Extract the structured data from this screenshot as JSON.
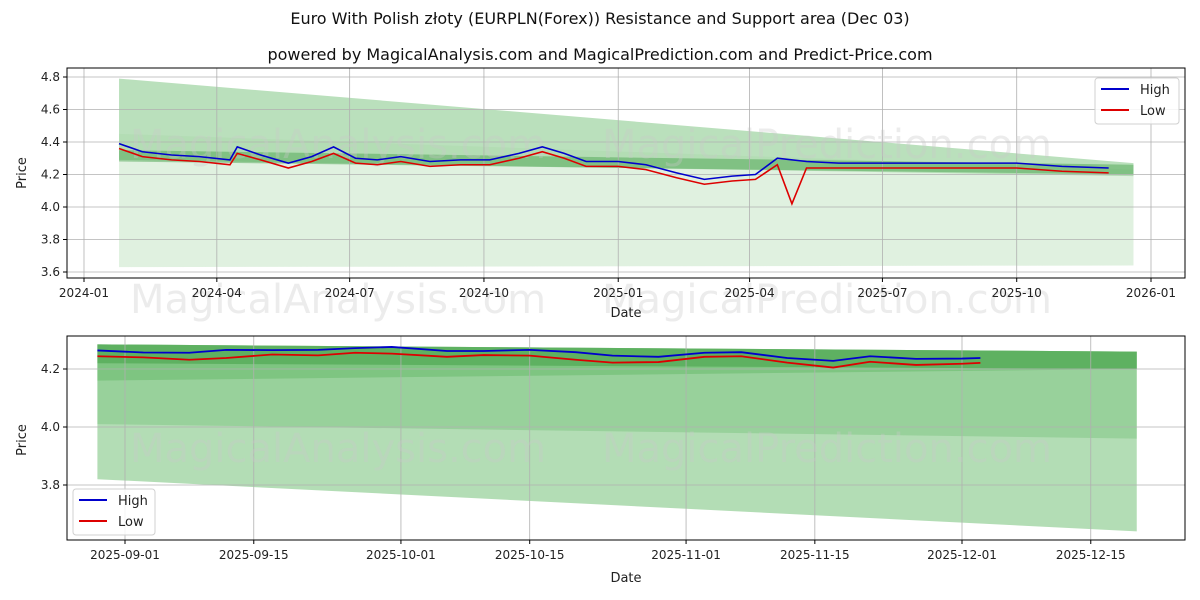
{
  "header": {
    "title": "Euro With Polish złoty (EURPLN(Forex)) Resistance and Support area (Dec 03)",
    "subtitle": "powered by MagicalAnalysis.com and MagicalPrediction.com and Predict-Price.com"
  },
  "watermarks": [
    "MagicalAnalysis.com",
    "MagicalPrediction.com"
  ],
  "colors": {
    "high": "#0000cc",
    "low": "#dd0000",
    "band_dark": "#4caf50",
    "band_mid": "#81c784",
    "band_light": "#c8e6c9",
    "grid": "#b0b0b0"
  },
  "chart_data": [
    {
      "type": "line",
      "title": "Full history",
      "xlabel": "Date",
      "ylabel": "Price",
      "ylim": [
        3.57,
        4.83
      ],
      "yticks": [
        "3.6",
        "3.8",
        "4.0",
        "4.2",
        "4.4",
        "4.6",
        "4.8"
      ],
      "xticks": [
        "2024-01",
        "2024-04",
        "2024-07",
        "2024-10",
        "2025-01",
        "2025-04",
        "2025-07",
        "2025-10",
        "2026-01"
      ],
      "grid": true,
      "legend_position": "upper right",
      "legend": [
        "High",
        "Low"
      ],
      "series": [
        {
          "name": "High",
          "x": [
            "2024-01-25",
            "2024-02-10",
            "2024-03-01",
            "2024-03-20",
            "2024-04-10",
            "2024-04-15",
            "2024-05-01",
            "2024-05-20",
            "2024-06-05",
            "2024-06-20",
            "2024-07-05",
            "2024-07-20",
            "2024-08-05",
            "2024-08-25",
            "2024-09-15",
            "2024-10-05",
            "2024-10-25",
            "2024-11-10",
            "2024-11-25",
            "2024-12-10",
            "2025-01-01",
            "2025-01-20",
            "2025-02-10",
            "2025-03-01",
            "2025-03-20",
            "2025-04-05",
            "2025-04-20",
            "2025-05-10",
            "2025-06-01",
            "2025-07-01",
            "2025-08-01",
            "2025-09-01",
            "2025-10-01",
            "2025-11-01",
            "2025-12-03"
          ],
          "values": [
            4.39,
            4.34,
            4.32,
            4.31,
            4.29,
            4.37,
            4.32,
            4.27,
            4.31,
            4.37,
            4.3,
            4.29,
            4.31,
            4.28,
            4.29,
            4.29,
            4.33,
            4.37,
            4.33,
            4.28,
            4.28,
            4.26,
            4.21,
            4.17,
            4.19,
            4.2,
            4.3,
            4.28,
            4.27,
            4.27,
            4.27,
            4.27,
            4.27,
            4.25,
            4.24
          ]
        },
        {
          "name": "Low",
          "x": [
            "2024-01-25",
            "2024-02-10",
            "2024-03-01",
            "2024-03-20",
            "2024-04-10",
            "2024-04-15",
            "2024-05-01",
            "2024-05-20",
            "2024-06-05",
            "2024-06-20",
            "2024-07-05",
            "2024-07-20",
            "2024-08-05",
            "2024-08-25",
            "2024-09-15",
            "2024-10-05",
            "2024-10-25",
            "2024-11-10",
            "2024-11-25",
            "2024-12-10",
            "2025-01-01",
            "2025-01-20",
            "2025-02-10",
            "2025-03-01",
            "2025-03-20",
            "2025-04-05",
            "2025-04-20",
            "2025-04-30",
            "2025-05-10",
            "2025-06-01",
            "2025-07-01",
            "2025-08-01",
            "2025-09-01",
            "2025-10-01",
            "2025-11-01",
            "2025-12-03"
          ],
          "values": [
            4.36,
            4.31,
            4.29,
            4.28,
            4.26,
            4.33,
            4.29,
            4.24,
            4.28,
            4.33,
            4.27,
            4.26,
            4.28,
            4.25,
            4.26,
            4.26,
            4.3,
            4.34,
            4.3,
            4.25,
            4.25,
            4.23,
            4.18,
            4.14,
            4.16,
            4.17,
            4.26,
            4.02,
            4.24,
            4.24,
            4.24,
            4.24,
            4.24,
            4.24,
            4.22,
            4.21
          ]
        }
      ],
      "bands": [
        {
          "name": "resistance-wide",
          "start": {
            "x": "2024-01-25",
            "top": 4.79,
            "bottom": 4.29
          },
          "end": {
            "x": "2025-12-20",
            "top": 4.27,
            "bottom": 4.19
          }
        },
        {
          "name": "support-wide",
          "start": {
            "x": "2024-01-25",
            "top": 4.45,
            "bottom": 3.63
          },
          "end": {
            "x": "2025-12-20",
            "top": 4.23,
            "bottom": 3.64
          }
        },
        {
          "name": "core-dark",
          "start": {
            "x": "2024-01-25",
            "top": 4.35,
            "bottom": 4.28
          },
          "end": {
            "x": "2025-12-20",
            "top": 4.26,
            "bottom": 4.2
          }
        }
      ]
    },
    {
      "type": "line",
      "title": "Recent detail",
      "xlabel": "Date",
      "ylabel": "Price",
      "ylim": [
        3.61,
        4.31
      ],
      "yticks": [
        "3.8",
        "4.0",
        "4.2"
      ],
      "xticks": [
        "2025-09-01",
        "2025-09-15",
        "2025-10-01",
        "2025-10-15",
        "2025-11-01",
        "2025-11-15",
        "2025-12-01",
        "2025-12-15"
      ],
      "grid": true,
      "legend_position": "lower left",
      "legend": [
        "High",
        "Low"
      ],
      "series": [
        {
          "name": "High",
          "x": [
            "2025-08-29",
            "2025-09-03",
            "2025-09-08",
            "2025-09-12",
            "2025-09-17",
            "2025-09-22",
            "2025-09-26",
            "2025-09-30",
            "2025-10-06",
            "2025-10-10",
            "2025-10-15",
            "2025-10-20",
            "2025-10-24",
            "2025-10-29",
            "2025-11-03",
            "2025-11-07",
            "2025-11-12",
            "2025-11-17",
            "2025-11-21",
            "2025-11-26",
            "2025-12-01",
            "2025-12-03"
          ],
          "values": [
            4.264,
            4.257,
            4.256,
            4.266,
            4.265,
            4.266,
            4.272,
            4.276,
            4.262,
            4.262,
            4.266,
            4.258,
            4.246,
            4.242,
            4.256,
            4.258,
            4.238,
            4.228,
            4.244,
            4.235,
            4.236,
            4.238
          ]
        },
        {
          "name": "Low",
          "x": [
            "2025-08-29",
            "2025-09-03",
            "2025-09-08",
            "2025-09-12",
            "2025-09-17",
            "2025-09-22",
            "2025-09-26",
            "2025-09-30",
            "2025-10-06",
            "2025-10-10",
            "2025-10-15",
            "2025-10-20",
            "2025-10-24",
            "2025-10-29",
            "2025-11-03",
            "2025-11-07",
            "2025-11-12",
            "2025-11-17",
            "2025-11-21",
            "2025-11-26",
            "2025-12-01",
            "2025-12-03"
          ],
          "values": [
            4.244,
            4.24,
            4.232,
            4.238,
            4.25,
            4.247,
            4.256,
            4.253,
            4.242,
            4.248,
            4.246,
            4.232,
            4.222,
            4.224,
            4.242,
            4.244,
            4.222,
            4.205,
            4.225,
            4.214,
            4.218,
            4.221
          ]
        }
      ],
      "bands": [
        {
          "name": "outer",
          "start": {
            "x": "2025-08-29",
            "top": 4.285,
            "bottom": 3.82
          },
          "end": {
            "x": "2025-12-20",
            "top": 4.26,
            "bottom": 3.64
          }
        },
        {
          "name": "middle",
          "start": {
            "x": "2025-08-29",
            "top": 4.285,
            "bottom": 4.01
          },
          "end": {
            "x": "2025-12-20",
            "top": 4.26,
            "bottom": 3.96
          }
        },
        {
          "name": "inner-dark",
          "start": {
            "x": "2025-08-29",
            "top": 4.285,
            "bottom": 4.16
          },
          "end": {
            "x": "2025-12-20",
            "top": 4.26,
            "bottom": 4.2
          }
        },
        {
          "name": "core",
          "start": {
            "x": "2025-08-29",
            "top": 4.285,
            "bottom": 4.22
          },
          "end": {
            "x": "2025-12-20",
            "top": 4.26,
            "bottom": 4.2
          }
        }
      ]
    }
  ]
}
